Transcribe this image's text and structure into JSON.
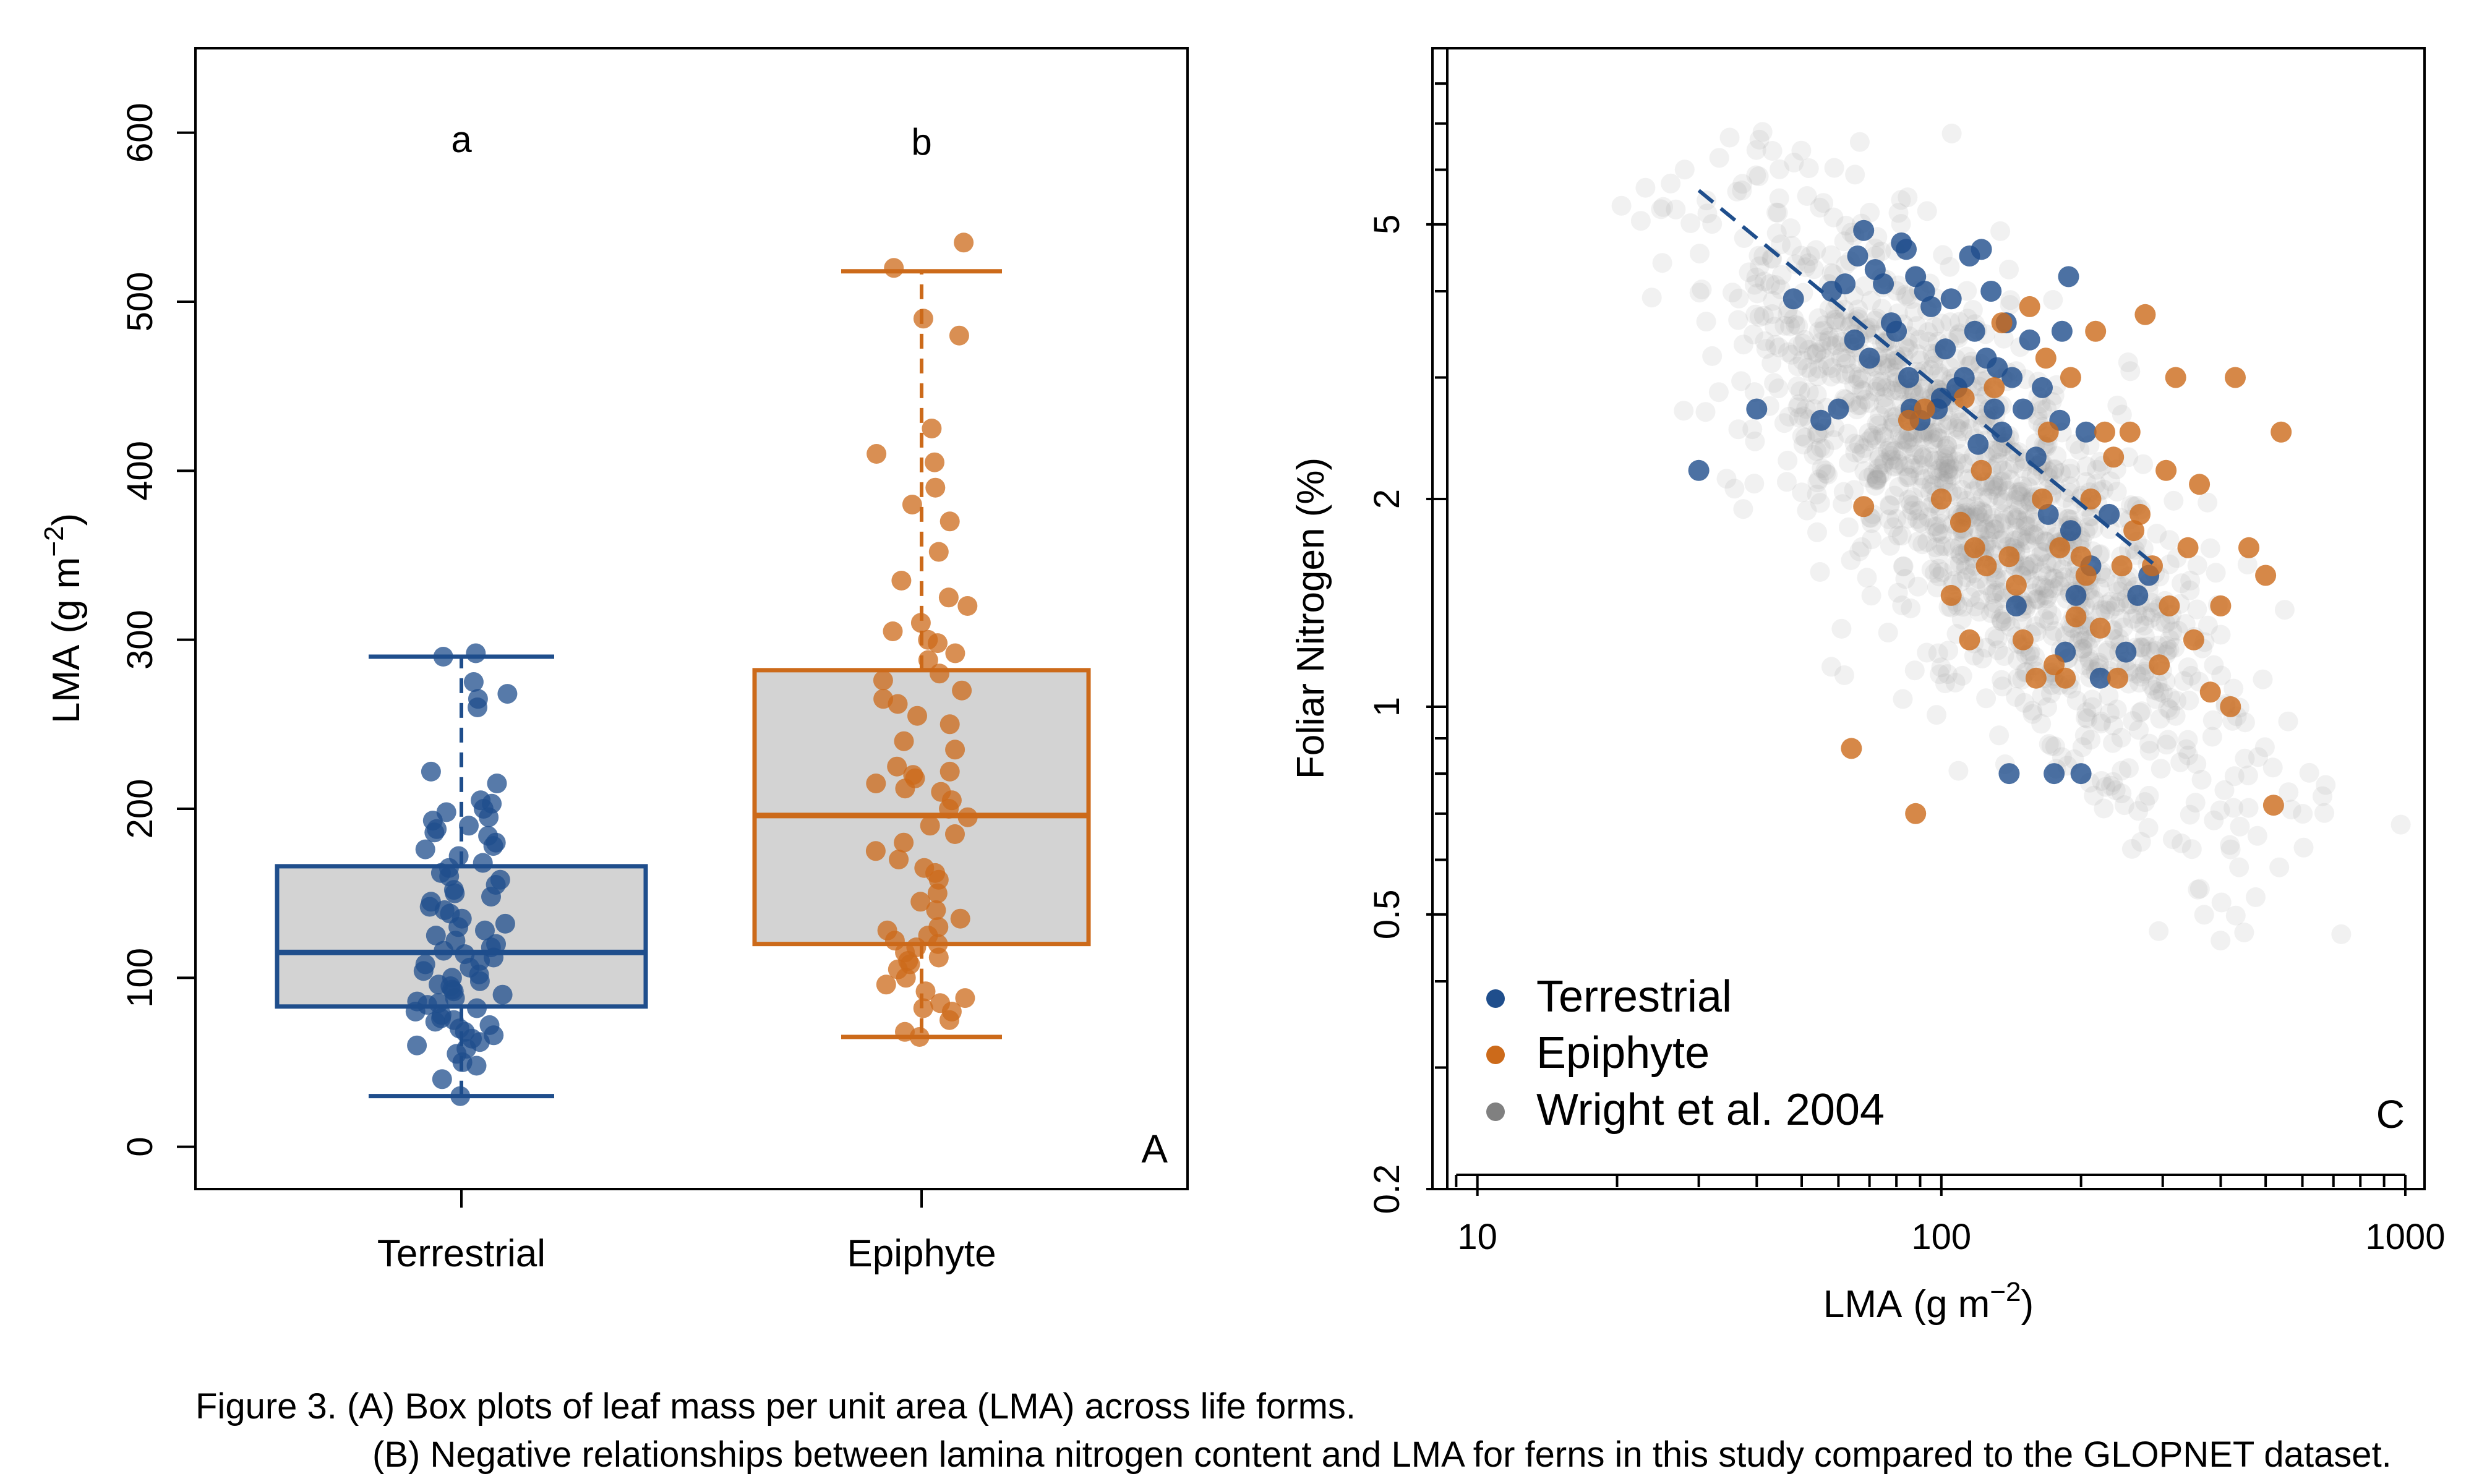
{
  "chart_data": [
    {
      "panel": "A",
      "type": "box",
      "ylabel": "LMA",
      "yunit": "(g m",
      "yunit_exp": "−2",
      "yunit_close": ")",
      "ylim": [
        -25,
        650
      ],
      "yticks": [
        "0",
        "100",
        "200",
        "300",
        "400",
        "500",
        "600"
      ],
      "panel_label": "A",
      "categories": [
        "Terrestrial",
        "Epiphyte"
      ],
      "significance": [
        "a",
        "b"
      ],
      "box_fill": "#d3d3d3",
      "series": [
        {
          "name": "Terrestrial",
          "color": "#1f4e8c",
          "min": 30,
          "q1": 83,
          "median": 115,
          "q3": 166,
          "max": 290,
          "points": [
            292,
            290,
            275,
            268,
            265,
            260,
            222,
            215,
            205,
            203,
            200,
            198,
            195,
            193,
            190,
            188,
            186,
            184,
            180,
            178,
            176,
            172,
            168,
            165,
            162,
            160,
            158,
            155,
            152,
            150,
            148,
            145,
            142,
            140,
            138,
            135,
            132,
            130,
            128,
            125,
            122,
            120,
            118,
            116,
            114,
            112,
            110,
            108,
            106,
            104,
            102,
            100,
            98,
            96,
            95,
            93,
            92,
            90,
            88,
            86,
            85,
            84,
            82,
            80,
            78,
            76,
            75,
            74,
            72,
            70,
            68,
            66,
            64,
            62,
            60,
            58,
            55,
            50,
            48,
            40,
            30
          ]
        },
        {
          "name": "Epiphyte",
          "color": "#cc6a1a",
          "min": 65,
          "q1": 120,
          "median": 196,
          "q3": 282,
          "max": 518,
          "points": [
            535,
            520,
            490,
            480,
            425,
            410,
            405,
            390,
            380,
            370,
            352,
            335,
            325,
            320,
            310,
            305,
            300,
            298,
            292,
            288,
            280,
            276,
            270,
            265,
            262,
            255,
            250,
            240,
            235,
            225,
            222,
            220,
            218,
            215,
            212,
            210,
            205,
            200,
            195,
            190,
            185,
            180,
            175,
            170,
            165,
            162,
            158,
            150,
            145,
            140,
            135,
            130,
            128,
            125,
            122,
            120,
            118,
            115,
            112,
            110,
            108,
            105,
            100,
            96,
            92,
            88,
            85,
            82,
            80,
            75,
            68,
            65
          ]
        }
      ]
    },
    {
      "panel": "C",
      "type": "scatter",
      "scale": "log-log",
      "xlabel": "LMA",
      "xunit": "(g m",
      "xunit_exp": "−2",
      "xunit_close": ")",
      "ylabel": "Foliar Nitrogen (%)",
      "xlim": [
        8,
        1100
      ],
      "ylim": [
        0.2,
        9
      ],
      "xticks": [
        "10",
        "100",
        "1000"
      ],
      "yticks": [
        "0.2",
        "0.5",
        "1",
        "2",
        "5"
      ],
      "panel_label": "C",
      "legend": [
        "Terrestrial",
        "Epiphyte",
        "Wright et al. 2004"
      ],
      "legend_colors": [
        "#1f4e8c",
        "#cc6a1a",
        "#808080"
      ],
      "trend_line": {
        "name": "Terrestrial fit",
        "x": [
          30,
          290
        ],
        "y": [
          5.6,
          1.6
        ],
        "style": "dashed"
      },
      "series": [
        {
          "name": "Terrestrial",
          "color": "#1f4e8c",
          "points": [
            [
              30,
              2.2
            ],
            [
              40,
              2.7
            ],
            [
              48,
              3.9
            ],
            [
              55,
              2.6
            ],
            [
              58,
              4.0
            ],
            [
              60,
              2.7
            ],
            [
              62,
              4.1
            ],
            [
              65,
              3.4
            ],
            [
              66,
              4.5
            ],
            [
              68,
              4.9
            ],
            [
              70,
              3.2
            ],
            [
              72,
              4.3
            ],
            [
              75,
              4.1
            ],
            [
              78,
              3.6
            ],
            [
              80,
              3.5
            ],
            [
              82,
              4.7
            ],
            [
              84,
              4.6
            ],
            [
              85,
              3.0
            ],
            [
              86,
              2.7
            ],
            [
              88,
              4.2
            ],
            [
              90,
              2.6
            ],
            [
              92,
              4.0
            ],
            [
              95,
              3.8
            ],
            [
              98,
              2.7
            ],
            [
              100,
              2.8
            ],
            [
              102,
              3.3
            ],
            [
              105,
              3.9
            ],
            [
              108,
              2.9
            ],
            [
              112,
              3.0
            ],
            [
              115,
              4.5
            ],
            [
              118,
              3.5
            ],
            [
              120,
              2.4
            ],
            [
              122,
              4.6
            ],
            [
              125,
              3.2
            ],
            [
              128,
              4.0
            ],
            [
              130,
              2.7
            ],
            [
              132,
              3.1
            ],
            [
              135,
              2.5
            ],
            [
              138,
              3.6
            ],
            [
              140,
              0.8
            ],
            [
              142,
              3.0
            ],
            [
              145,
              1.4
            ],
            [
              150,
              2.7
            ],
            [
              155,
              3.4
            ],
            [
              160,
              2.3
            ],
            [
              165,
              2.9
            ],
            [
              170,
              1.9
            ],
            [
              175,
              0.8
            ],
            [
              180,
              2.6
            ],
            [
              182,
              3.5
            ],
            [
              185,
              1.2
            ],
            [
              188,
              4.2
            ],
            [
              190,
              1.8
            ],
            [
              195,
              1.45
            ],
            [
              200,
              0.8
            ],
            [
              205,
              2.5
            ],
            [
              210,
              1.6
            ],
            [
              220,
              1.1
            ],
            [
              230,
              1.9
            ],
            [
              250,
              1.2
            ],
            [
              265,
              1.45
            ],
            [
              280,
              1.55
            ]
          ]
        },
        {
          "name": "Epiphyte",
          "color": "#cc6a1a",
          "points": [
            [
              64,
              0.87
            ],
            [
              68,
              1.95
            ],
            [
              85,
              2.6
            ],
            [
              88,
              0.7
            ],
            [
              92,
              2.7
            ],
            [
              100,
              2.0
            ],
            [
              105,
              1.45
            ],
            [
              110,
              1.85
            ],
            [
              112,
              2.8
            ],
            [
              115,
              1.25
            ],
            [
              118,
              1.7
            ],
            [
              122,
              2.2
            ],
            [
              125,
              1.6
            ],
            [
              130,
              2.9
            ],
            [
              135,
              3.6
            ],
            [
              140,
              1.65
            ],
            [
              145,
              1.5
            ],
            [
              150,
              1.25
            ],
            [
              155,
              3.8
            ],
            [
              160,
              1.1
            ],
            [
              165,
              2.0
            ],
            [
              168,
              3.2
            ],
            [
              170,
              2.5
            ],
            [
              175,
              1.15
            ],
            [
              180,
              1.7
            ],
            [
              185,
              1.1
            ],
            [
              190,
              3.0
            ],
            [
              195,
              1.35
            ],
            [
              200,
              1.65
            ],
            [
              205,
              1.55
            ],
            [
              210,
              2.0
            ],
            [
              215,
              3.5
            ],
            [
              220,
              1.3
            ],
            [
              225,
              2.5
            ],
            [
              235,
              2.3
            ],
            [
              240,
              1.1
            ],
            [
              245,
              1.6
            ],
            [
              255,
              2.5
            ],
            [
              260,
              1.8
            ],
            [
              268,
              1.9
            ],
            [
              275,
              3.7
            ],
            [
              285,
              1.6
            ],
            [
              295,
              1.15
            ],
            [
              305,
              2.2
            ],
            [
              310,
              1.4
            ],
            [
              320,
              3.0
            ],
            [
              340,
              1.7
            ],
            [
              350,
              1.25
            ],
            [
              360,
              2.1
            ],
            [
              380,
              1.05
            ],
            [
              400,
              1.4
            ],
            [
              420,
              1.0
            ],
            [
              430,
              3.0
            ],
            [
              460,
              1.7
            ],
            [
              500,
              1.55
            ],
            [
              520,
              0.72
            ],
            [
              540,
              2.5
            ]
          ]
        },
        {
          "name": "Wright et al. 2004",
          "color": "#808080",
          "generated": "dense background cloud, ~2500 species, negative N–LMA trend"
        }
      ]
    }
  ],
  "caption": {
    "line1": "Figure 3. (A) Box plots of leaf mass per unit area (LMA) across life forms.",
    "line2": "(B) Negative relationships between lamina nitrogen content and LMA for ferns in this study compared to the GLOPNET dataset."
  }
}
